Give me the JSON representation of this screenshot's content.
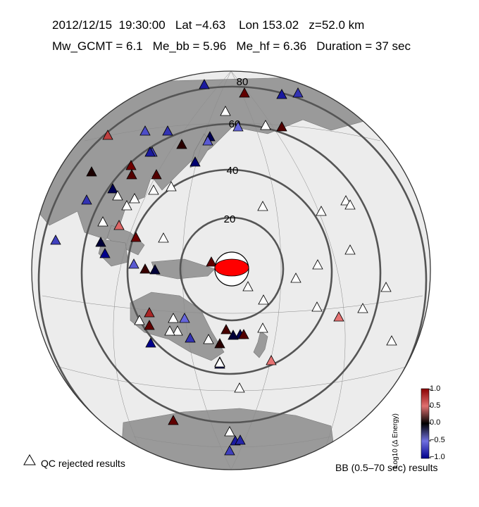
{
  "header": {
    "line1": "2012/12/15  19:30:00   Lat −4.63    Lon 153.02   z=52.0 km",
    "line2": "Mw_GCMT = 6.1   Me_bb = 5.96   Me_hf = 6.36   Duration = 37 sec"
  },
  "map": {
    "distance_labels": [
      "20",
      "40",
      "60",
      "80"
    ],
    "event_marker": "beachball-icon",
    "colors": {
      "land": "#9a9a9a",
      "ocean": "#ececec",
      "rings": "#555555",
      "event": "#ff0000",
      "rejected": "#ffffff"
    }
  },
  "legend": {
    "qc_label": "QC rejected results",
    "qc_icon": "open-triangle-icon",
    "bb_label": "BB (0.5–70 sec) results"
  },
  "colorbar": {
    "title": "Log10 (Δ Energy)",
    "ticks": [
      "1.0",
      "0.5",
      "0.0",
      "−0.5",
      "−1.0"
    ],
    "colors": [
      "#8b0000",
      "#000000",
      "#00008b"
    ],
    "range": [
      -1.0,
      1.0
    ]
  },
  "stations": [
    {
      "v": -0.6
    },
    {
      "v": 0.35
    },
    {
      "v": -0.6
    },
    {
      "v": -0.7
    },
    {
      "v": null
    },
    {
      "v": 0.3
    },
    {
      "v": null
    },
    {
      "v": -0.9
    },
    {
      "v": 0.75
    },
    {
      "v": -0.8
    },
    {
      "v": -0.7
    },
    {
      "v": 0.15
    },
    {
      "v": -0.3
    },
    {
      "v": -0.75
    },
    {
      "v": -0.4
    },
    {
      "v": -0.85
    },
    {
      "v": -0.6
    },
    {
      "v": 0.1
    },
    {
      "v": 0.4
    },
    {
      "v": 0.3
    },
    {
      "v": 0.3
    },
    {
      "v": -0.3
    },
    {
      "v": null
    },
    {
      "v": 0.4
    },
    {
      "v": null
    },
    {
      "v": null
    },
    {
      "v": -0.2
    },
    {
      "v": -0.5
    },
    {
      "v": -0.7
    },
    {
      "v": null
    },
    {
      "v": null
    },
    {
      "v": -0.75
    },
    {
      "v": null
    },
    {
      "v": 0.9
    },
    {
      "v": null
    },
    {
      "v": 0.2
    },
    {
      "v": 0.35
    },
    {
      "v": -0.2
    },
    {
      "v": -0.85
    },
    {
      "v": null
    },
    {
      "v": null
    },
    {
      "v": null
    },
    {
      "v": null
    },
    {
      "v": null
    },
    {
      "v": null
    },
    {
      "v": null
    },
    {
      "v": null
    },
    {
      "v": null
    },
    {
      "v": null
    },
    {
      "v": null
    },
    {
      "v": 0.95
    },
    {
      "v": null
    },
    {
      "v": null
    },
    {
      "v": 0.0
    },
    {
      "v": 0.65
    },
    {
      "v": null
    },
    {
      "v": -0.9
    },
    {
      "v": 0.35
    },
    {
      "v": -0.7
    },
    {
      "v": 0.25
    },
    {
      "v": -0.5
    },
    {
      "v": 0.95
    },
    {
      "v": null
    },
    {
      "v": -0.3
    },
    {
      "v": 0.15
    },
    {
      "v": -0.2
    },
    {
      "v": 0.3
    },
    {
      "v": null
    },
    {
      "v": 0.35
    },
    {
      "v": null
    },
    {
      "v": null
    },
    {
      "v": null
    },
    {
      "v": null
    },
    {
      "v": null
    },
    {
      "v": -0.6
    },
    {
      "v": -0.65
    },
    {
      "v": -0.75
    },
    {
      "v": -0.3
    },
    {
      "v": null
    }
  ]
}
